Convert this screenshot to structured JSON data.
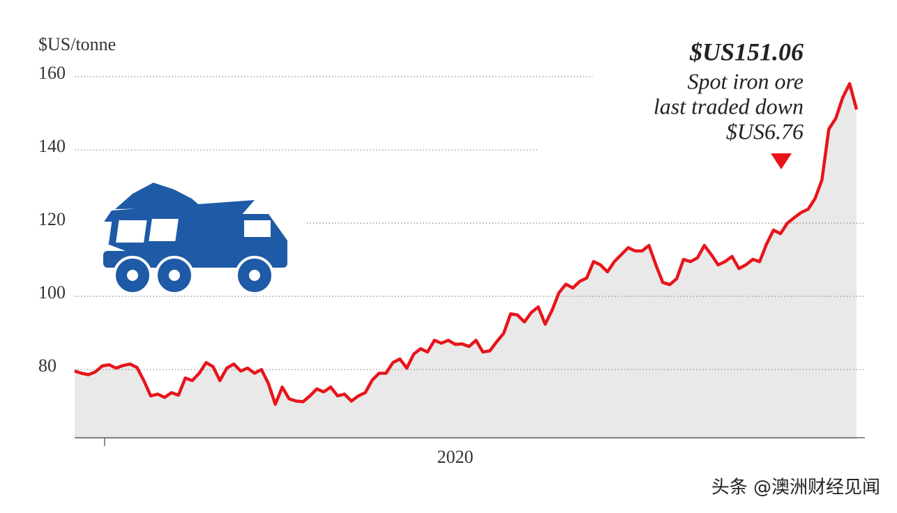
{
  "chart_data": {
    "type": "line",
    "y_label": "$US/tonne",
    "annotation": {
      "price": "$US151.06",
      "lines": [
        "Spot iron ore",
        "last traded down",
        "$US6.76"
      ]
    },
    "watermark": "头条 @澳洲财经见闻",
    "categories": [
      null,
      null,
      null,
      null,
      null,
      null,
      null,
      null,
      null,
      null,
      null,
      null,
      null,
      null,
      null,
      null,
      null,
      null,
      null,
      null,
      null,
      null,
      null,
      null,
      null,
      null,
      null,
      null,
      null,
      null,
      null,
      null,
      null,
      null,
      null,
      null,
      null,
      null,
      null,
      null,
      null,
      null,
      null,
      null,
      null,
      null,
      null,
      null,
      null,
      null,
      null,
      null,
      null,
      null,
      null,
      "2020",
      null,
      null,
      null,
      null,
      null,
      null,
      null,
      null,
      null,
      null,
      null,
      null,
      null,
      null,
      null,
      null,
      null,
      null,
      null,
      null,
      null,
      null,
      null,
      null,
      null,
      null,
      null,
      null,
      null,
      null,
      null,
      null,
      null,
      null,
      null,
      null,
      null,
      null,
      null,
      null,
      null,
      null,
      null,
      null,
      null,
      null,
      null,
      null,
      null,
      null,
      null,
      null,
      null,
      null,
      null,
      null,
      null,
      null
    ],
    "series": [
      {
        "name": "Spot iron ore",
        "color": "#e8141b",
        "values": [
          79.6,
          79,
          78.6,
          79.4,
          81,
          81.3,
          80.4,
          81.1,
          81.5,
          80.6,
          77,
          72.8,
          73.3,
          72.4,
          73.7,
          73,
          77.7,
          77,
          79,
          81.9,
          80.8,
          77,
          80.4,
          81.5,
          79.6,
          80.4,
          79,
          80,
          76.2,
          70.5,
          75.2,
          72,
          71.4,
          71.2,
          72.8,
          74.7,
          73.9,
          75.2,
          72.8,
          73.3,
          71.4,
          72.8,
          73.7,
          77.1,
          79,
          79,
          81.9,
          82.9,
          80.4,
          84.2,
          85.7,
          84.8,
          88,
          87.2,
          88,
          86.9,
          87,
          86.3,
          88,
          84.8,
          85.1,
          87.6,
          89.9,
          95.2,
          94.9,
          93,
          95.6,
          97.1,
          92.4,
          96.2,
          101,
          103.3,
          102.3,
          104.1,
          105,
          109.5,
          108.6,
          106.7,
          109.5,
          111.4,
          113.3,
          112.4,
          112.4,
          113.9,
          108.6,
          103.8,
          103.2,
          104.8,
          110.1,
          109.5,
          110.5,
          113.9,
          111.4,
          108.6,
          109.5,
          110.9,
          107.6,
          108.6,
          110.1,
          109.5,
          114.3,
          118.1,
          117.1,
          120,
          121.5,
          122.9,
          123.8,
          126.7,
          131.8,
          145.7,
          148.6,
          154.3,
          158.1,
          151.06
        ]
      }
    ],
    "area_color": "#e9e9e9",
    "ylim": [
      61,
      160
    ],
    "yticks": [
      80,
      100,
      120,
      140,
      160
    ],
    "grid": true
  }
}
